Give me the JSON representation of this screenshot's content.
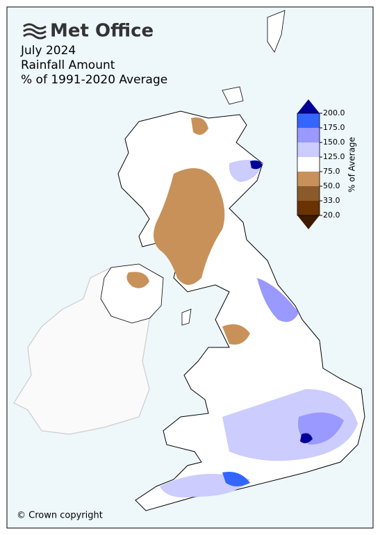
{
  "header": {
    "logo": "Met Office",
    "title": "July 2024",
    "subtitle": "Rainfall Amount",
    "caption": "% of 1991-2020 Average"
  },
  "legend": {
    "title": "% of Average",
    "ticks": [
      {
        "value": 20,
        "label": "20.0"
      },
      {
        "value": 33,
        "label": "33.0"
      },
      {
        "value": 50,
        "label": "50.0"
      },
      {
        "value": 75,
        "label": "75.0"
      },
      {
        "value": 125,
        "label": "125.0"
      },
      {
        "value": 150,
        "label": "150.0"
      },
      {
        "value": 175,
        "label": "175.0"
      },
      {
        "value": 200,
        "label": "200.0"
      }
    ],
    "colors": [
      "#6a3300",
      "#8b5a2b",
      "#c8915a",
      "#ffffff",
      "#ccccff",
      "#9999ff",
      "#3366ff"
    ],
    "under_color": "#3d1a00",
    "over_color": "#000099"
  },
  "footer": {
    "copyright": "© Crown copyright"
  }
}
